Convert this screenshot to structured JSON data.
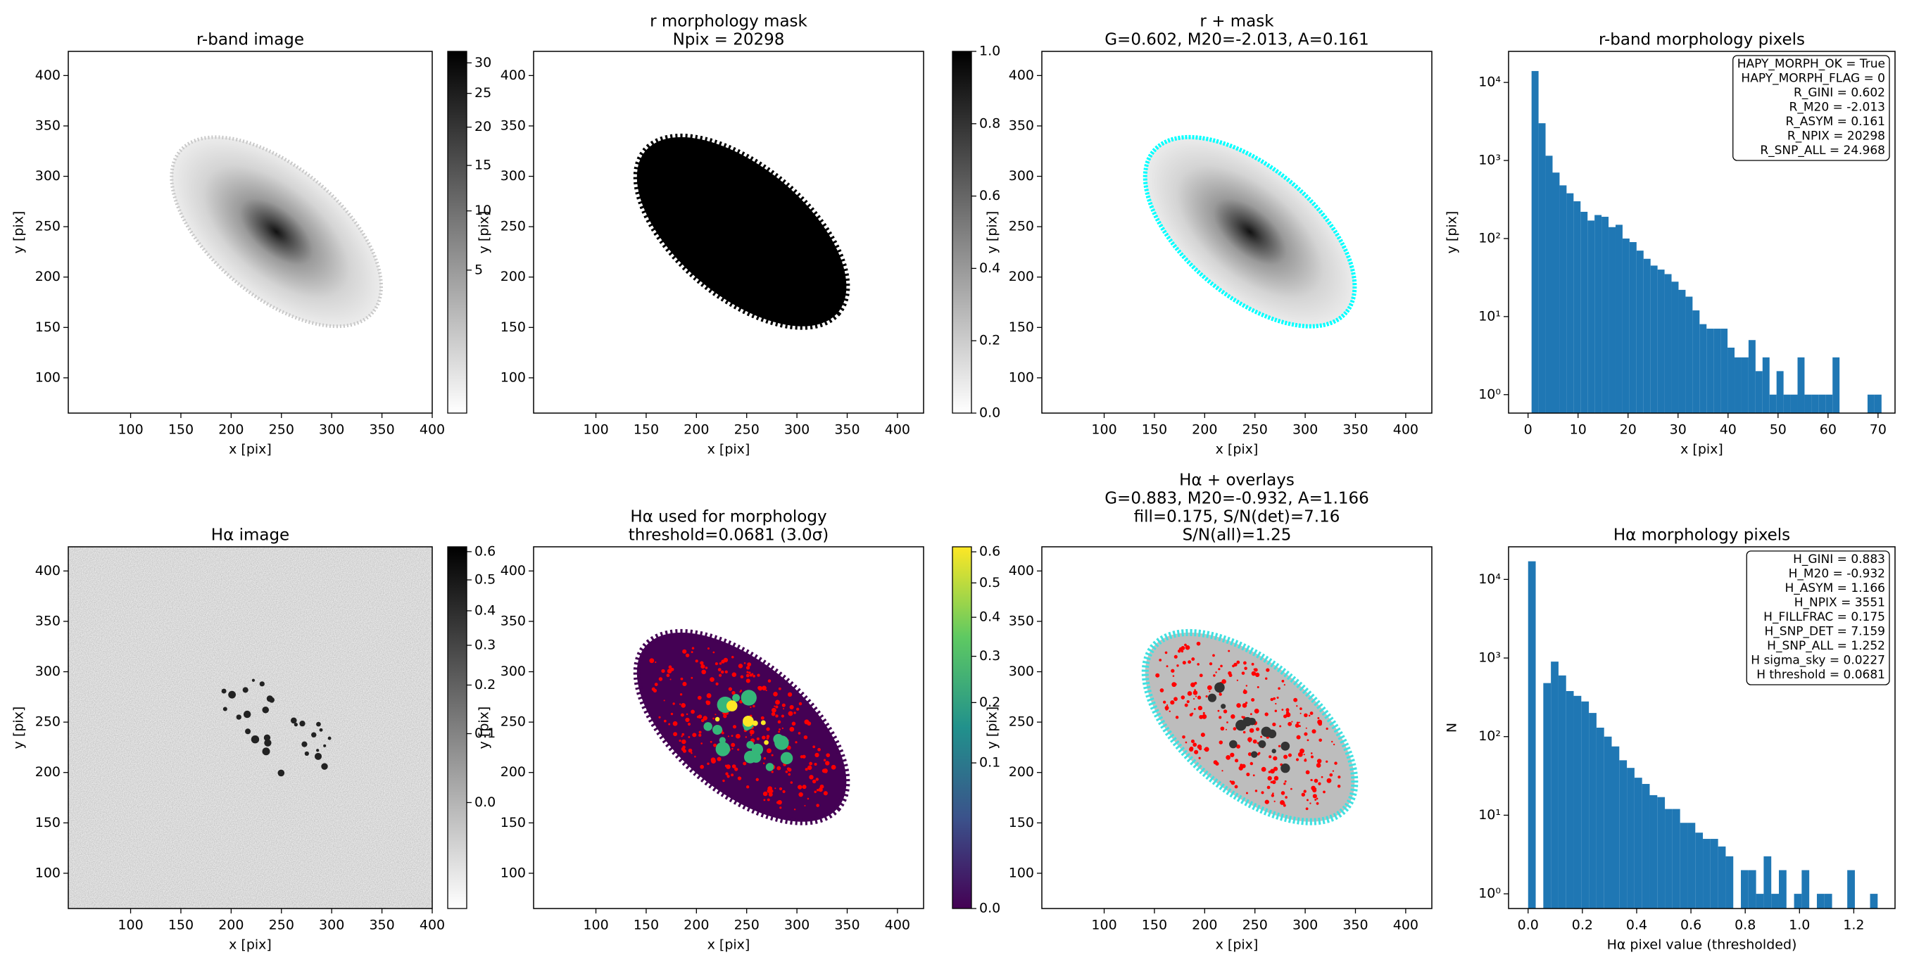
{
  "chart_data": [
    {
      "type": "image",
      "title": [
        "r-band image"
      ],
      "xlabel": "x [pix]",
      "ylabel": "y [pix]",
      "xlim": [
        38,
        400
      ],
      "ylim": [
        65,
        424
      ],
      "xticks": [
        100,
        150,
        200,
        250,
        300,
        350,
        400
      ],
      "yticks": [
        100,
        150,
        200,
        250,
        300,
        350,
        400
      ],
      "colorbar": {
        "cmap": "gray_r",
        "scale": "sqrt",
        "lim": [
          0,
          32
        ],
        "ticks": [
          5,
          10,
          15,
          20,
          25,
          30
        ]
      }
    },
    {
      "type": "image",
      "title": [
        "r morphology mask",
        "Npix = 20298"
      ],
      "xlabel": "x [pix]",
      "ylabel": "y [pix]",
      "xlim": [
        38,
        426
      ],
      "ylim": [
        65,
        424
      ],
      "xticks": [
        100,
        150,
        200,
        250,
        300,
        350,
        400
      ],
      "yticks": [
        100,
        150,
        200,
        250,
        300,
        350,
        400
      ],
      "colorbar": {
        "cmap": "gray_r",
        "scale": "linear",
        "lim": [
          0,
          1
        ],
        "ticks": [
          {
            "value": 0,
            "label": "0.0"
          },
          0.2,
          0.4,
          0.6,
          0.8,
          {
            "value": 1,
            "label": "1.0"
          }
        ]
      }
    },
    {
      "type": "image",
      "title": [
        "r + mask",
        "G=0.602, M20=-2.013, A=0.161"
      ],
      "xlabel": "x [pix]",
      "ylabel": "y [pix]",
      "xlim": [
        38,
        426
      ],
      "ylim": [
        65,
        424
      ],
      "xticks": [
        100,
        150,
        200,
        250,
        300,
        350,
        400
      ],
      "yticks": [
        100,
        150,
        200,
        250,
        300,
        350,
        400
      ]
    },
    {
      "type": "histogram",
      "title": [
        "r-band morphology pixels"
      ],
      "xlabel": "x [pix]",
      "ylabel": "y [pix]",
      "color": "#1f77b4",
      "log_y": true,
      "bins": [
        0.7,
        2.1,
        3.5,
        4.9,
        6.3,
        7.7,
        9.1,
        10.5,
        11.9,
        13.3,
        14.7,
        16.1,
        17.5,
        18.9,
        20.3,
        21.7,
        23.1,
        24.5,
        25.9,
        27.3,
        28.7,
        30.1,
        31.5,
        32.9,
        34.3,
        35.7,
        37.1,
        38.5,
        39.9,
        41.3,
        42.7,
        44.1,
        45.5,
        46.9,
        48.3,
        49.7,
        51.1,
        52.5,
        53.9,
        55.3,
        56.7,
        58.1,
        59.5,
        60.9,
        62.3,
        63.7,
        65.1,
        66.5,
        67.9,
        69.3,
        70.7
      ],
      "values": [
        14000,
        3000,
        1150,
        700,
        480,
        380,
        300,
        220,
        170,
        200,
        190,
        140,
        150,
        100,
        90,
        70,
        55,
        45,
        40,
        35,
        28,
        22,
        18,
        12,
        8,
        7,
        7,
        7,
        4,
        3,
        3,
        5,
        2,
        3,
        1,
        2,
        1,
        1,
        3,
        1,
        1,
        1,
        1,
        3,
        0,
        0,
        0,
        0,
        1,
        1
      ],
      "xlim": [
        -3.9,
        73.4
      ],
      "ylim": [
        0.58,
        25000
      ],
      "xticks": [
        0,
        10,
        20,
        30,
        40,
        50,
        60,
        70
      ],
      "yticks": [
        {
          "value": 1,
          "label": "10⁰"
        },
        {
          "value": 10,
          "label": "10¹"
        },
        {
          "value": 100,
          "label": "10²"
        },
        {
          "value": 1000,
          "label": "10³"
        },
        {
          "value": 10000,
          "label": "10⁴"
        }
      ],
      "stats": [
        "HAPY_MORPH_OK = True",
        "HAPY_MORPH_FLAG = 0",
        "R_GINI = 0.602",
        "R_M20 = -2.013",
        "R_ASYM = 0.161",
        "R_NPIX = 20298",
        "R_SNP_ALL = 24.968"
      ]
    },
    {
      "type": "image",
      "title": [
        "Hα image"
      ],
      "xlabel": "x [pix]",
      "ylabel": "y [pix]",
      "xlim": [
        38,
        400
      ],
      "ylim": [
        65,
        424
      ],
      "xticks": [
        100,
        150,
        200,
        250,
        300,
        350,
        400
      ],
      "yticks": [
        100,
        150,
        200,
        250,
        300,
        350,
        400
      ],
      "colorbar": {
        "cmap": "gray_r",
        "scale": "sqrt",
        "lim": [
          -0.058,
          0.618
        ],
        "ticks": [
          {
            "value": 0,
            "label": "0.0"
          },
          0.1,
          0.2,
          0.3,
          0.4,
          0.5,
          0.6
        ]
      }
    },
    {
      "type": "image",
      "title": [
        "Hα used for morphology",
        "threshold=0.0681 (3.0σ)"
      ],
      "xlabel": "x [pix]",
      "ylabel": "y [pix]",
      "xlim": [
        38,
        426
      ],
      "ylim": [
        65,
        424
      ],
      "xticks": [
        100,
        150,
        200,
        250,
        300,
        350,
        400
      ],
      "yticks": [
        100,
        150,
        200,
        250,
        300,
        350,
        400
      ],
      "colorbar": {
        "cmap": "viridis",
        "scale": "sqrt",
        "lim": [
          0,
          0.617
        ],
        "ticks": [
          {
            "value": 0,
            "label": "0.0"
          },
          0.1,
          0.2,
          0.3,
          0.4,
          0.5,
          0.6
        ]
      }
    },
    {
      "type": "image",
      "title": [
        "Hα + overlays",
        "G=0.883, M20=-0.932, A=1.166",
        "fill=0.175, S/N(det)=7.16",
        "S/N(all)=1.25"
      ],
      "xlabel": "x [pix]",
      "ylabel": "y [pix]",
      "xlim": [
        38,
        426
      ],
      "ylim": [
        65,
        424
      ],
      "xticks": [
        100,
        150,
        200,
        250,
        300,
        350,
        400
      ],
      "yticks": [
        100,
        150,
        200,
        250,
        300,
        350,
        400
      ]
    },
    {
      "type": "histogram",
      "title": [
        "Hα morphology pixels"
      ],
      "xlabel": "Hα pixel value (thresholded)",
      "ylabel": "N",
      "color": "#1f77b4",
      "log_y": true,
      "bins": [
        0,
        0.028,
        0.056,
        0.084,
        0.112,
        0.14,
        0.168,
        0.196,
        0.224,
        0.252,
        0.28,
        0.308,
        0.336,
        0.364,
        0.392,
        0.42,
        0.448,
        0.476,
        0.504,
        0.532,
        0.56,
        0.588,
        0.616,
        0.644,
        0.672,
        0.7,
        0.728,
        0.756,
        0.784,
        0.812,
        0.84,
        0.868,
        0.896,
        0.924,
        0.952,
        0.98,
        1.008,
        1.036,
        1.064,
        1.092,
        1.12,
        1.148,
        1.176,
        1.204,
        1.232,
        1.26,
        1.288
      ],
      "values": [
        17000,
        0,
        480,
        900,
        600,
        380,
        330,
        280,
        200,
        130,
        100,
        75,
        50,
        40,
        30,
        25,
        18,
        17,
        12,
        12,
        8,
        8,
        6,
        5,
        5,
        4,
        3,
        0,
        2,
        2,
        1,
        3,
        1,
        2,
        0,
        1,
        2,
        0,
        1,
        1,
        0,
        0,
        2,
        0,
        0,
        1
      ],
      "xlim": [
        -0.072,
        1.352
      ],
      "ylim": [
        0.65,
        26000
      ],
      "xticks": [
        {
          "value": 0,
          "label": "0.0"
        },
        0.2,
        0.4,
        0.6,
        0.8,
        {
          "value": 1,
          "label": "1.0"
        },
        1.2
      ],
      "yticks": [
        {
          "value": 1,
          "label": "10⁰"
        },
        {
          "value": 10,
          "label": "10¹"
        },
        {
          "value": 100,
          "label": "10²"
        },
        {
          "value": 1000,
          "label": "10³"
        },
        {
          "value": 10000,
          "label": "10⁴"
        }
      ],
      "stats": [
        "H_GINI = 0.883",
        "H_M20 = -0.932",
        "H_ASYM = 1.166",
        "H_NPIX = 3551",
        "H_FILLFRAC = 0.175",
        "H_SNP_DET = 7.159",
        "H_SNP_ALL = 1.252",
        "H sigma_sky = 0.0227",
        "H threshold = 0.0681"
      ]
    }
  ]
}
